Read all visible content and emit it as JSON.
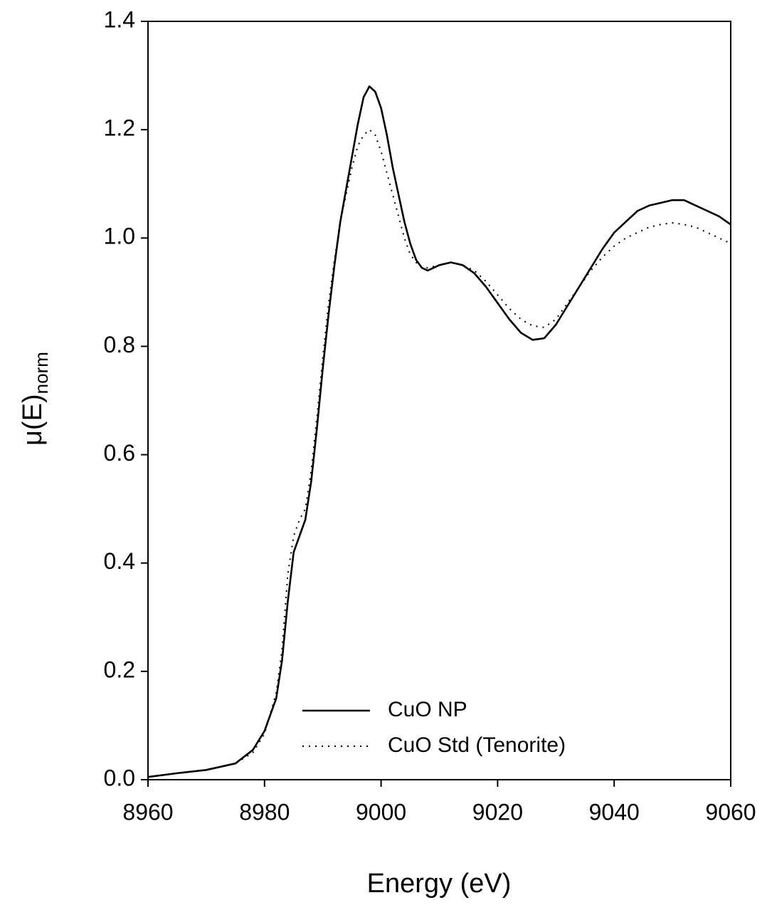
{
  "chart_data": {
    "type": "line",
    "xlabel": "Energy (eV)",
    "ylabel": "μ(E)",
    "ylabel_subscript": "norm",
    "x": [
      8960,
      8965,
      8970,
      8975,
      8978,
      8980,
      8982,
      8983,
      8984,
      8985,
      8986,
      8987,
      8988,
      8989,
      8990,
      8991,
      8992,
      8993,
      8994,
      8995,
      8996,
      8997,
      8998,
      8999,
      9000,
      9001,
      9002,
      9003,
      9004,
      9005,
      9006,
      9007,
      9008,
      9010,
      9012,
      9014,
      9016,
      9018,
      9020,
      9022,
      9024,
      9026,
      9028,
      9030,
      9032,
      9034,
      9036,
      9038,
      9040,
      9042,
      9044,
      9046,
      9048,
      9050,
      9052,
      9054,
      9056,
      9058,
      9060
    ],
    "series": [
      {
        "name": "CuO NP",
        "color": "#000000",
        "dash": "solid",
        "values": [
          0.005,
          0.012,
          0.018,
          0.03,
          0.055,
          0.09,
          0.15,
          0.22,
          0.33,
          0.42,
          0.45,
          0.48,
          0.55,
          0.65,
          0.76,
          0.86,
          0.95,
          1.03,
          1.09,
          1.15,
          1.21,
          1.26,
          1.28,
          1.27,
          1.24,
          1.19,
          1.13,
          1.08,
          1.03,
          0.99,
          0.96,
          0.945,
          0.94,
          0.95,
          0.955,
          0.95,
          0.935,
          0.91,
          0.88,
          0.85,
          0.825,
          0.812,
          0.815,
          0.84,
          0.875,
          0.91,
          0.945,
          0.98,
          1.01,
          1.03,
          1.05,
          1.06,
          1.065,
          1.07,
          1.07,
          1.06,
          1.05,
          1.04,
          1.025
        ]
      },
      {
        "name": "CuO Std (Tenorite)",
        "color": "#000000",
        "dash": "dotted",
        "values": [
          0.005,
          0.012,
          0.018,
          0.03,
          0.05,
          0.085,
          0.16,
          0.24,
          0.38,
          0.45,
          0.48,
          0.5,
          0.57,
          0.67,
          0.78,
          0.88,
          0.96,
          1.03,
          1.08,
          1.13,
          1.17,
          1.19,
          1.2,
          1.19,
          1.16,
          1.12,
          1.08,
          1.04,
          1.0,
          0.97,
          0.955,
          0.945,
          0.945,
          0.95,
          0.955,
          0.95,
          0.94,
          0.92,
          0.895,
          0.87,
          0.85,
          0.838,
          0.835,
          0.85,
          0.88,
          0.91,
          0.94,
          0.965,
          0.985,
          1.0,
          1.01,
          1.02,
          1.025,
          1.028,
          1.025,
          1.02,
          1.01,
          1.0,
          0.99
        ]
      }
    ],
    "xlim": [
      8960,
      9060
    ],
    "xticks": [
      8960,
      8980,
      9000,
      9020,
      9040,
      9060
    ],
    "ylim": [
      0,
      1.4
    ],
    "yticks": [
      {
        "value": 0,
        "label": "0.0"
      },
      0.2,
      0.4,
      0.6,
      0.8,
      {
        "value": 1,
        "label": "1.0"
      },
      1.2,
      1.4
    ],
    "grid": false,
    "legend": "lower-center"
  }
}
